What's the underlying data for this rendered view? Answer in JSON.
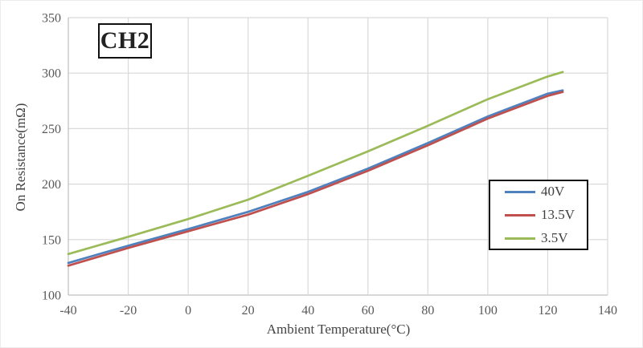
{
  "chart_data": {
    "type": "line",
    "panel_label": "CH2",
    "xlabel": "Ambient Temperature(°C)",
    "ylabel": "On Resistance(mΩ)",
    "xlim": [
      -40,
      140
    ],
    "ylim": [
      100,
      350
    ],
    "xticks": [
      -40,
      -20,
      0,
      20,
      40,
      60,
      80,
      100,
      120,
      140
    ],
    "yticks": [
      100,
      150,
      200,
      250,
      300,
      350
    ],
    "grid": true,
    "legend_position": "middle-right",
    "x": [
      -40,
      -20,
      0,
      20,
      40,
      60,
      80,
      100,
      120,
      125
    ],
    "series": [
      {
        "name": "40V",
        "color": "#4F81BD",
        "values": [
          129,
          144.5,
          159.5,
          175,
          193,
          214,
          237,
          261,
          281.5,
          284.5
        ]
      },
      {
        "name": "13.5V",
        "color": "#C0504D",
        "values": [
          126.5,
          142.5,
          157.5,
          172.5,
          191,
          212,
          235,
          259,
          279.5,
          283
        ]
      },
      {
        "name": "3.5V",
        "color": "#9BBB59",
        "values": [
          137,
          152.5,
          168.5,
          186,
          207.5,
          229.5,
          252.5,
          276.5,
          297,
          301
        ]
      }
    ]
  },
  "colors": {
    "grid": "#D9D9D9",
    "axis": "#BFBFBF",
    "tick_text": "#595959"
  }
}
